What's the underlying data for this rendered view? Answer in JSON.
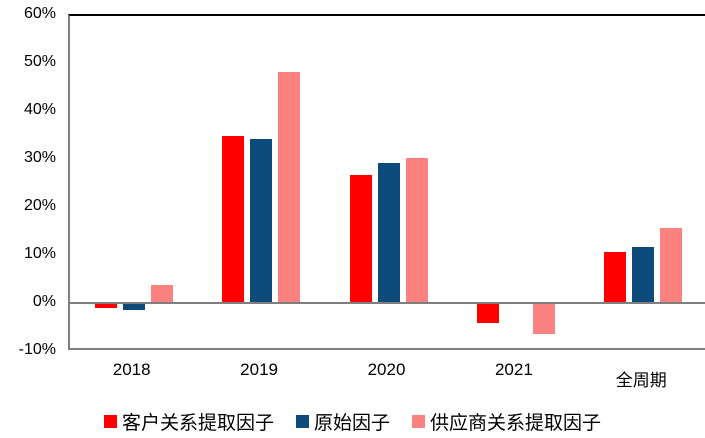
{
  "chart_data": {
    "type": "bar",
    "title": "",
    "xlabel": "",
    "ylabel": "",
    "categories": [
      "2018",
      "2019",
      "2020",
      "2021",
      "全周期"
    ],
    "series": [
      {
        "name": "客户关系提取因子",
        "color": "#FF0000",
        "values": [
          -0.8,
          34.5,
          26.5,
          -4.0,
          10.5
        ]
      },
      {
        "name": "原始因子",
        "color": "#0C4B7B",
        "values": [
          -1.2,
          34.0,
          29.0,
          0.0,
          11.5
        ]
      },
      {
        "name": "供应商关系提取因子",
        "color": "#FC8181",
        "values": [
          3.6,
          48.0,
          30.0,
          -6.2,
          15.5
        ]
      }
    ],
    "y_axis": {
      "unit": "%",
      "min": -10,
      "max": 60,
      "tick_values": [
        60,
        50,
        40,
        30,
        20,
        10,
        0,
        -10
      ],
      "tick_labels": [
        "60%",
        "50%",
        "40%",
        "30%",
        "20%",
        "10%",
        "0%",
        "-10%"
      ]
    },
    "legend_position": "bottom",
    "grid": false,
    "colors": {
      "axis_line": "#7f7f7f",
      "top_border": "#000000",
      "background": "#ffffff"
    }
  }
}
